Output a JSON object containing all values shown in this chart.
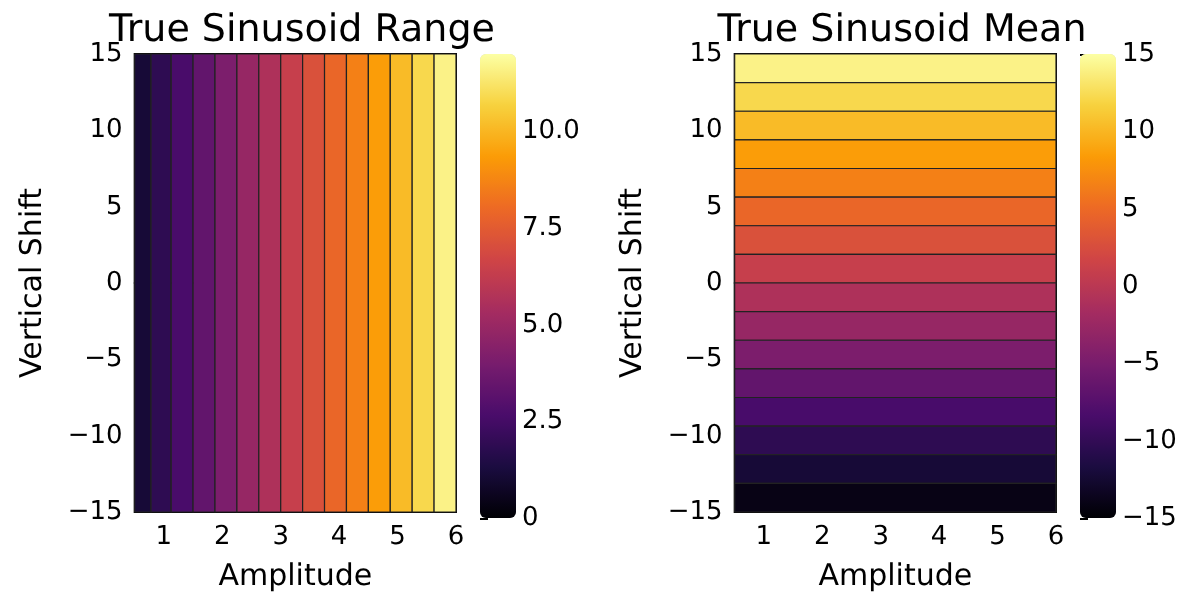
{
  "chart_data": [
    {
      "type": "heatmap",
      "title": "True Sinusoid Range",
      "xlabel": "Amplitude",
      "ylabel": "Vertical Shift",
      "x": [
        0.62,
        0.94,
        1.31,
        1.69,
        2.06,
        2.44,
        2.81,
        3.19,
        3.56,
        3.94,
        4.31,
        4.69,
        5.06,
        5.44,
        5.81
      ],
      "cells": [
        [
          1.125,
          1.875,
          2.625,
          3.375,
          4.125,
          4.875,
          5.625,
          6.375,
          7.125,
          7.875,
          8.625,
          9.375,
          10.125,
          10.875,
          11.625
        ]
      ],
      "xlim": [
        0.5,
        6
      ],
      "xticks": [
        1,
        2,
        3,
        4,
        5,
        6
      ],
      "ylim": [
        -15,
        15
      ],
      "yticks": [
        {
          "value": -15,
          "label": "−15"
        },
        {
          "value": -10,
          "label": "−10"
        },
        {
          "value": -5,
          "label": "−5"
        },
        0,
        5,
        10,
        15
      ],
      "clim": [
        0,
        12
      ],
      "cticks": [
        0,
        {
          "value": 2.5,
          "label": "2.5"
        },
        {
          "value": 5,
          "label": "5.0"
        },
        {
          "value": 7.5,
          "label": "7.5"
        },
        {
          "value": 10,
          "label": "10.0"
        }
      ]
    },
    {
      "type": "heatmap",
      "title": "True Sinusoid Mean",
      "xlabel": "Amplitude",
      "ylabel": "Vertical Shift",
      "y": [
        14.06,
        12.19,
        10.31,
        8.44,
        6.56,
        4.69,
        2.81,
        0.94,
        -0.94,
        -2.81,
        -4.69,
        -6.56,
        -8.44,
        -10.31,
        -12.19,
        -14.06
      ],
      "cells": [
        [
          14.06
        ],
        [
          12.19
        ],
        [
          10.31
        ],
        [
          8.44
        ],
        [
          6.56
        ],
        [
          4.69
        ],
        [
          2.81
        ],
        [
          0.94
        ],
        [
          -0.94
        ],
        [
          -2.81
        ],
        [
          -4.69
        ],
        [
          -6.56
        ],
        [
          -8.44
        ],
        [
          -10.31
        ],
        [
          -12.19
        ],
        [
          -14.06
        ]
      ],
      "xlim": [
        0.5,
        6
      ],
      "xticks": [
        1,
        2,
        3,
        4,
        5,
        6
      ],
      "ylim": [
        -15,
        15
      ],
      "yticks": [
        {
          "value": -15,
          "label": "−15"
        },
        {
          "value": -10,
          "label": "−10"
        },
        {
          "value": -5,
          "label": "−5"
        },
        0,
        5,
        10,
        15
      ],
      "clim": [
        -15,
        15
      ],
      "cticks": [
        {
          "value": -15,
          "label": "−15"
        },
        {
          "value": -10,
          "label": "−10"
        },
        {
          "value": -5,
          "label": "−5"
        },
        0,
        5,
        10,
        15
      ]
    }
  ]
}
